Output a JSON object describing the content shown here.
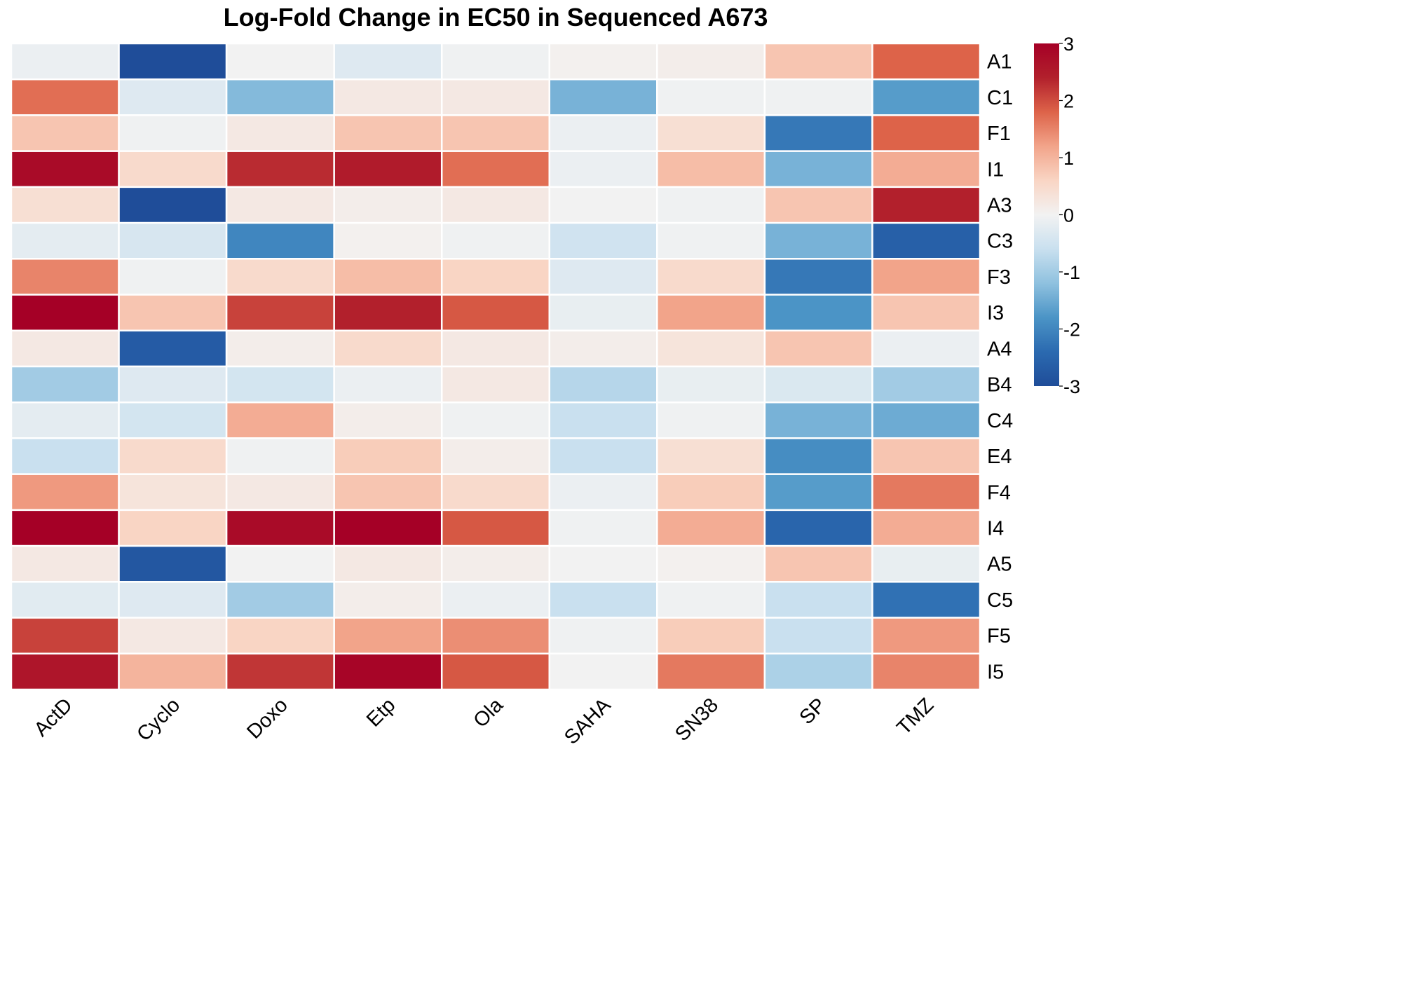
{
  "chart_data": {
    "type": "heatmap",
    "title": "Log-Fold Change in EC50 in Sequenced A673",
    "columns": [
      "ActD",
      "Cyclo",
      "Doxo",
      "Etp",
      "Ola",
      "SAHA",
      "SN38",
      "SP",
      "TMZ"
    ],
    "rows": [
      "A1",
      "C1",
      "F1",
      "I1",
      "A3",
      "C3",
      "F3",
      "I3",
      "A4",
      "B4",
      "C4",
      "E4",
      "F4",
      "I4",
      "A5",
      "C5",
      "F5",
      "I5"
    ],
    "values": [
      [
        -0.1,
        -3.0,
        0.0,
        -0.3,
        -0.05,
        0.05,
        0.1,
        0.8,
        1.8
      ],
      [
        1.7,
        -0.3,
        -1.3,
        0.2,
        0.2,
        -1.4,
        -0.05,
        -0.05,
        -1.7
      ],
      [
        0.8,
        -0.05,
        0.2,
        0.8,
        0.8,
        -0.1,
        0.4,
        -2.2,
        1.8
      ],
      [
        2.8,
        0.5,
        2.3,
        2.5,
        1.7,
        -0.1,
        0.9,
        -1.4,
        1.1
      ],
      [
        0.4,
        -3.0,
        0.2,
        0.1,
        0.2,
        0.0,
        -0.05,
        0.8,
        2.4
      ],
      [
        -0.2,
        -0.4,
        -2.0,
        0.05,
        -0.05,
        -0.5,
        -0.05,
        -1.4,
        -2.6
      ],
      [
        1.5,
        -0.05,
        0.5,
        0.9,
        0.6,
        -0.3,
        0.5,
        -2.2,
        1.2
      ],
      [
        3.0,
        0.8,
        2.1,
        2.4,
        1.9,
        -0.15,
        1.2,
        -1.8,
        0.8
      ],
      [
        0.2,
        -2.7,
        0.1,
        0.5,
        0.2,
        0.1,
        0.3,
        0.8,
        -0.1
      ],
      [
        -1.0,
        -0.3,
        -0.45,
        -0.1,
        0.2,
        -0.8,
        -0.15,
        -0.35,
        -1.0
      ],
      [
        -0.2,
        -0.45,
        1.1,
        0.1,
        -0.05,
        -0.6,
        -0.05,
        -1.4,
        -1.5
      ],
      [
        -0.6,
        0.5,
        -0.05,
        0.7,
        0.1,
        -0.6,
        0.4,
        -1.9,
        0.8
      ],
      [
        1.3,
        0.3,
        0.2,
        0.8,
        0.5,
        -0.1,
        0.7,
        -1.7,
        1.6
      ],
      [
        3.0,
        0.6,
        2.8,
        3.0,
        1.9,
        -0.05,
        1.1,
        -2.5,
        1.1
      ],
      [
        0.2,
        -2.8,
        0.0,
        0.2,
        0.1,
        0.0,
        0.05,
        0.8,
        -0.15
      ],
      [
        -0.25,
        -0.3,
        -1.0,
        0.1,
        -0.1,
        -0.6,
        -0.05,
        -0.6,
        -2.3
      ],
      [
        2.1,
        0.2,
        0.6,
        1.2,
        1.4,
        -0.05,
        0.7,
        -0.6,
        1.3
      ],
      [
        2.6,
        1.0,
        2.2,
        2.9,
        1.9,
        0.0,
        1.6,
        -0.9,
        1.5
      ]
    ],
    "legend": {
      "min": -3,
      "max": 3,
      "ticks": [
        "3",
        "2",
        "1",
        "0",
        "-1",
        "-2",
        "-3"
      ],
      "placement": "top-right"
    },
    "colorscale": [
      "#1f4d99",
      "#2b6ab0",
      "#4b94c6",
      "#8fc1df",
      "#c9e0ef",
      "#f2f2f2",
      "#f9d5c4",
      "#f2a48a",
      "#dd6349",
      "#b2202c",
      "#a50026"
    ],
    "grid": false
  }
}
